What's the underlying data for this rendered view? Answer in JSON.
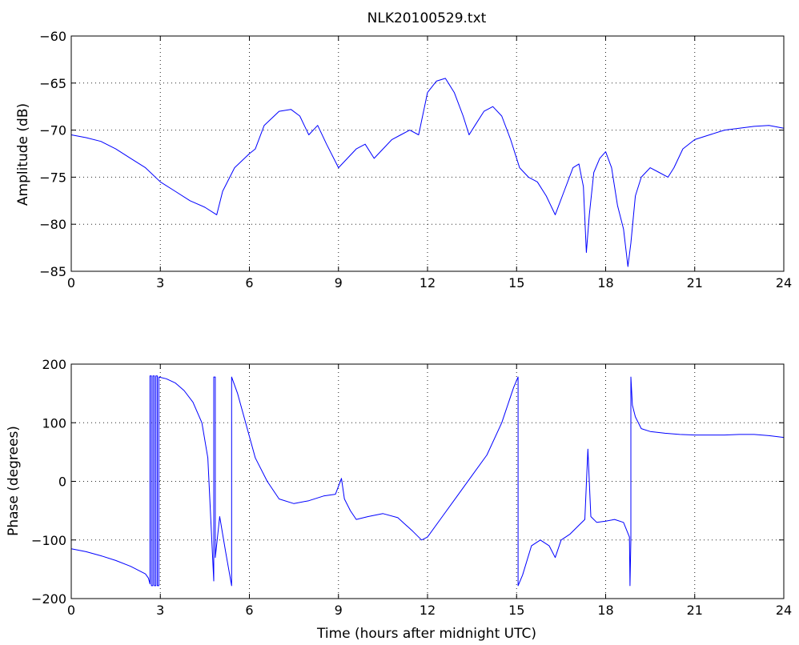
{
  "chart_data": [
    {
      "type": "line",
      "title": "NLK20100529.txt",
      "xlabel": "",
      "ylabel": "Amplitude (dB)",
      "xlim": [
        0,
        24
      ],
      "ylim": [
        -85,
        -60
      ],
      "xticks": [
        0,
        3,
        6,
        9,
        12,
        15,
        18,
        21,
        24
      ],
      "yticks": [
        -85,
        -80,
        -75,
        -70,
        -65,
        -60
      ],
      "xtick_labels": [
        "0",
        "3",
        "6",
        "9",
        "12",
        "15",
        "18",
        "21",
        "24"
      ],
      "ytick_labels": [
        "−85",
        "−80",
        "−75",
        "−70",
        "−65",
        "−60"
      ],
      "grid": true,
      "color": "#0000ff",
      "series": [
        {
          "x": [
            0,
            0.5,
            1,
            1.5,
            2,
            2.5,
            3,
            3.5,
            4,
            4.5,
            4.9,
            5.1,
            5.5,
            6,
            6.2,
            6.5,
            7,
            7.4,
            7.7,
            8,
            8.3,
            8.6,
            9,
            9.3,
            9.6,
            9.9,
            10.2,
            10.5,
            10.8,
            11.1,
            11.4,
            11.7,
            12,
            12.3,
            12.6,
            12.9,
            13.2,
            13.4,
            13.6,
            13.9,
            14.2,
            14.5,
            14.8,
            15.1,
            15.4,
            15.7,
            16,
            16.3,
            16.6,
            16.9,
            17.1,
            17.25,
            17.35,
            17.45,
            17.6,
            17.8,
            18,
            18.2,
            18.4,
            18.6,
            18.75,
            18.85,
            19,
            19.2,
            19.5,
            19.8,
            20.1,
            20.3,
            20.6,
            21,
            21.5,
            22,
            22.5,
            23,
            23.5,
            24
          ],
          "y": [
            -70.5,
            -70.8,
            -71.2,
            -72,
            -73,
            -74,
            -75.5,
            -76.5,
            -77.5,
            -78.2,
            -79,
            -76.5,
            -74,
            -72.5,
            -72,
            -69.5,
            -68,
            -67.8,
            -68.5,
            -70.5,
            -69.5,
            -71.5,
            -74,
            -73,
            -72,
            -71.5,
            -73,
            -72,
            -71,
            -70.5,
            -70,
            -70.5,
            -66,
            -64.8,
            -64.5,
            -66,
            -68.5,
            -70.5,
            -69.5,
            -68,
            -67.5,
            -68.5,
            -71,
            -74,
            -75,
            -75.5,
            -77,
            -79,
            -76.5,
            -74,
            -73.6,
            -76,
            -83,
            -79,
            -74.5,
            -73,
            -72.3,
            -74,
            -78,
            -80.5,
            -84.5,
            -82,
            -77,
            -75,
            -74,
            -74.5,
            -75,
            -74,
            -72,
            -71,
            -70.5,
            -70,
            -69.8,
            -69.6,
            -69.5,
            -69.8
          ]
        }
      ]
    },
    {
      "type": "line",
      "title": "",
      "xlabel": "Time (hours after midnight UTC)",
      "ylabel": "Phase (degrees)",
      "xlim": [
        0,
        24
      ],
      "ylim": [
        -200,
        200
      ],
      "xticks": [
        0,
        3,
        6,
        9,
        12,
        15,
        18,
        21,
        24
      ],
      "yticks": [
        -200,
        -100,
        0,
        100,
        200
      ],
      "xtick_labels": [
        "0",
        "3",
        "6",
        "9",
        "12",
        "15",
        "18",
        "21",
        "24"
      ],
      "ytick_labels": [
        "−200",
        "−100",
        "0",
        "100",
        "200"
      ],
      "grid": true,
      "color": "#0000ff",
      "series": [
        {
          "x": [
            0,
            0.5,
            1,
            1.5,
            2,
            2.5,
            2.6,
            2.65,
            2.65,
            2.7,
            2.7,
            2.75,
            2.75,
            2.8,
            2.8,
            2.85,
            2.85,
            2.9,
            2.9,
            2.95,
            2.95,
            3.2,
            3.5,
            3.8,
            4.1,
            4.4,
            4.6,
            4.8,
            4.8,
            4.85,
            4.85,
            5,
            5.2,
            5.4,
            5.4,
            5.6,
            5.9,
            6.2,
            6.6,
            7,
            7.5,
            8,
            8.5,
            8.9,
            9.1,
            9.2,
            9.4,
            9.6,
            10,
            10.5,
            11,
            11.5,
            11.8,
            12,
            12.5,
            13,
            13.5,
            14,
            14.5,
            14.9,
            15.05,
            15.05,
            15.2,
            15.5,
            15.8,
            16.1,
            16.3,
            16.5,
            16.8,
            17.1,
            17.3,
            17.4,
            17.5,
            17.7,
            18,
            18.3,
            18.6,
            18.8,
            18.82,
            18.85,
            18.85,
            18.9,
            19,
            19.2,
            19.5,
            20,
            20.5,
            21,
            21.5,
            22,
            22.5,
            23,
            23.5,
            24
          ],
          "y": [
            -115,
            -120,
            -127,
            -135,
            -145,
            -158,
            -165,
            -175,
            180,
            180,
            -178,
            -178,
            180,
            180,
            -178,
            -178,
            180,
            180,
            -178,
            -178,
            178,
            175,
            168,
            155,
            135,
            100,
            40,
            -170,
            178,
            178,
            -130,
            -60,
            -120,
            -178,
            178,
            150,
            95,
            40,
            0,
            -30,
            -38,
            -33,
            -25,
            -22,
            5,
            -30,
            -50,
            -65,
            -60,
            -55,
            -62,
            -85,
            -100,
            -95,
            -60,
            -25,
            10,
            45,
            100,
            160,
            178,
            -178,
            -160,
            -110,
            -100,
            -110,
            -130,
            -100,
            -90,
            -75,
            -65,
            55,
            -60,
            -70,
            -68,
            -65,
            -70,
            -95,
            -178,
            -100,
            178,
            130,
            110,
            90,
            85,
            82,
            80,
            79,
            79,
            79,
            80,
            80,
            78,
            75
          ]
        }
      ]
    }
  ]
}
